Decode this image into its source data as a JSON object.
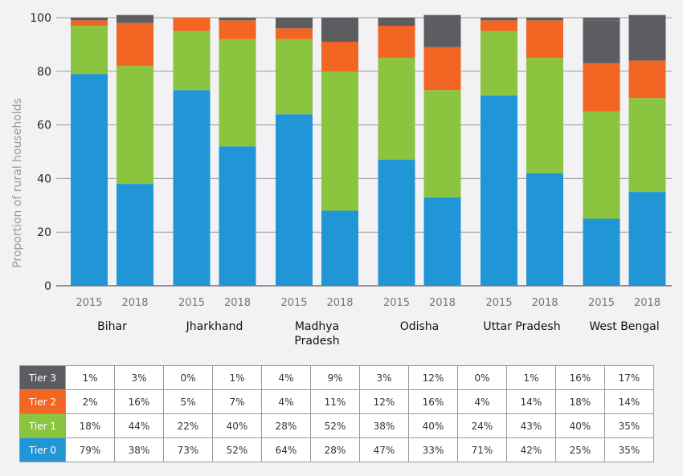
{
  "chart_data": {
    "type": "bar",
    "stacked": true,
    "ylabel": "Proportion of rural households",
    "ylim": [
      0,
      100
    ],
    "yticks": [
      0,
      20,
      40,
      60,
      80,
      100
    ],
    "grid": true,
    "groups": [
      "Bihar",
      "Jharkhand",
      "Madhya\nPradesh",
      "Odisha",
      "Uttar Pradesh",
      "West Bengal"
    ],
    "years": [
      "2015",
      "2018"
    ],
    "series": [
      {
        "name": "Tier 0",
        "color": "#2196d6",
        "values": [
          79,
          38,
          73,
          52,
          64,
          28,
          47,
          33,
          71,
          42,
          25,
          35
        ],
        "labels": [
          "79%",
          "38%",
          "73%",
          "52%",
          "64%",
          "28%",
          "47%",
          "33%",
          "71%",
          "42%",
          "25%",
          "35%"
        ]
      },
      {
        "name": "Tier 1",
        "color": "#8bc43f",
        "values": [
          18,
          44,
          22,
          40,
          28,
          52,
          38,
          40,
          24,
          43,
          40,
          35
        ],
        "labels": [
          "18%",
          "44%",
          "22%",
          "40%",
          "28%",
          "52%",
          "38%",
          "40%",
          "24%",
          "43%",
          "40%",
          "35%"
        ]
      },
      {
        "name": "Tier 2",
        "color": "#f26522",
        "values": [
          2,
          16,
          5,
          7,
          4,
          11,
          12,
          16,
          4,
          14,
          18,
          14
        ],
        "labels": [
          "2%",
          "16%",
          "5%",
          "7%",
          "4%",
          "11%",
          "12%",
          "16%",
          "4%",
          "14%",
          "18%",
          "14%"
        ]
      },
      {
        "name": "Tier 3",
        "color": "#5d5d61",
        "values": [
          1,
          3,
          0,
          1,
          4,
          9,
          3,
          12,
          0,
          1,
          16,
          17
        ],
        "labels": [
          "1%",
          "3%",
          "0%",
          "1%",
          "4%",
          "9%",
          "3%",
          "12%",
          "0%",
          "1%",
          "16%",
          "17%"
        ]
      }
    ],
    "table_row_order": [
      "Tier 3",
      "Tier 2",
      "Tier 1",
      "Tier 0"
    ]
  }
}
